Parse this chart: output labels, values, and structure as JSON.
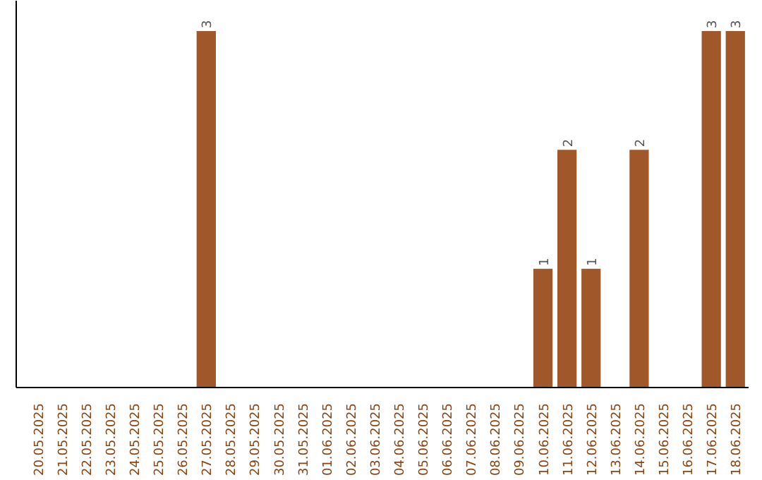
{
  "chart_data": {
    "type": "bar",
    "categories": [
      "20.05.2025",
      "21.05.2025",
      "22.05.2025",
      "23.05.2025",
      "24.05.2025",
      "25.05.2025",
      "26.05.2025",
      "27.05.2025",
      "28.05.2025",
      "29.05.2025",
      "30.05.2025",
      "31.05.2025",
      "01.06.2025",
      "02.06.2025",
      "03.06.2025",
      "04.06.2025",
      "05.06.2025",
      "06.06.2025",
      "07.06.2025",
      "08.06.2025",
      "09.06.2025",
      "10.06.2025",
      "11.06.2025",
      "12.06.2025",
      "13.06.2025",
      "14.06.2025",
      "15.06.2025",
      "16.06.2025",
      "17.06.2025",
      "18.06.2025"
    ],
    "values": [
      0,
      0,
      0,
      0,
      0,
      0,
      0,
      3,
      0,
      0,
      0,
      0,
      0,
      0,
      0,
      0,
      0,
      0,
      0,
      0,
      0,
      1,
      2,
      1,
      0,
      2,
      0,
      0,
      3,
      3
    ],
    "value_labels": [
      null,
      null,
      null,
      null,
      null,
      null,
      null,
      "3",
      null,
      null,
      null,
      null,
      null,
      null,
      null,
      null,
      null,
      null,
      null,
      null,
      null,
      "1",
      "2",
      "1",
      null,
      "2",
      null,
      null,
      "3",
      "3"
    ],
    "color": "#a0582a"
  }
}
